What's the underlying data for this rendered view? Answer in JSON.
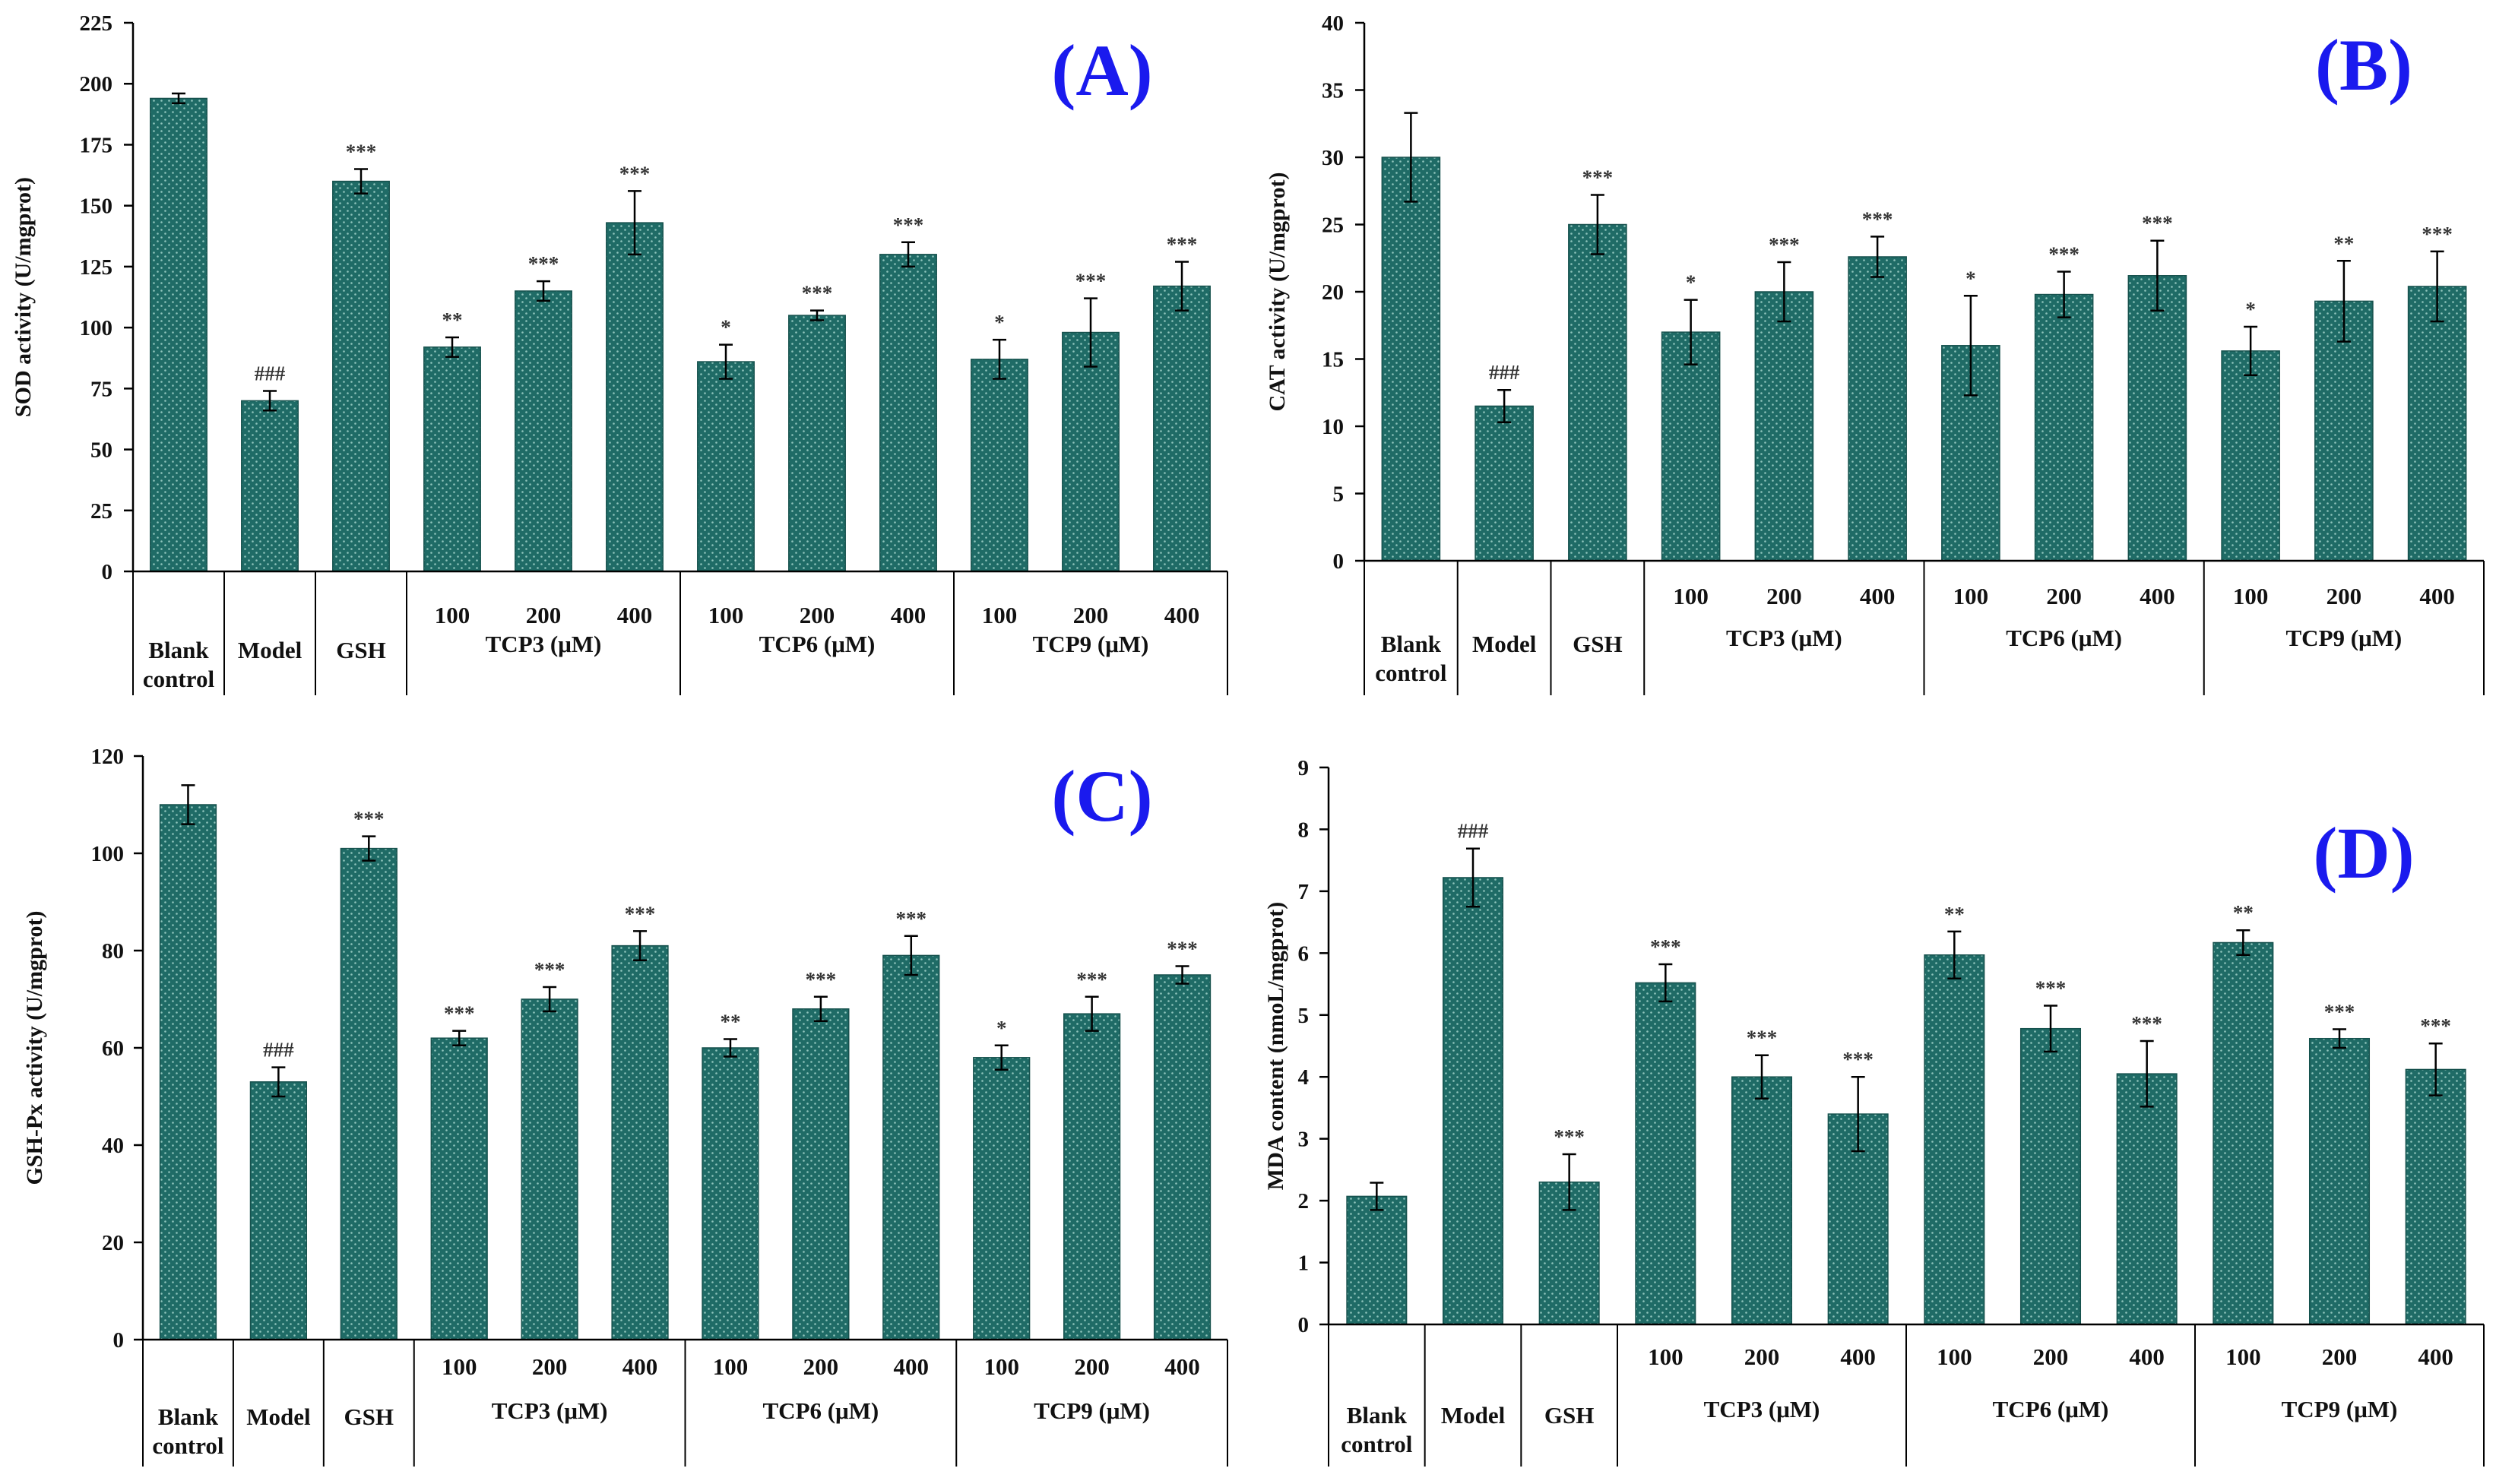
{
  "colors": {
    "bar": "#1f6b66",
    "dot": "#8fc4bc",
    "axis": "#000000",
    "letter": "#1a1aee"
  },
  "chart_data": [
    {
      "type": "bar",
      "title": "(A)",
      "ylabel": "SOD activity (U/mgprot)",
      "ylim": [
        0,
        225
      ],
      "yticks": [
        0,
        25,
        50,
        75,
        100,
        125,
        150,
        175,
        200,
        225
      ],
      "categories": [
        "Blank control",
        "Model",
        "GSH",
        "100",
        "200",
        "400",
        "100",
        "200",
        "400",
        "100",
        "200",
        "400"
      ],
      "values": [
        194,
        70,
        160,
        92,
        115,
        143,
        86,
        105,
        130,
        87,
        98,
        117
      ],
      "errors": [
        2,
        4,
        5,
        4,
        4,
        13,
        7,
        2,
        5,
        8,
        14,
        10
      ],
      "significance": [
        "",
        "###",
        "***",
        "**",
        "***",
        "***",
        "*",
        "***",
        "***",
        "*",
        "***",
        "***"
      ],
      "single_labels": [
        "Blank",
        "control",
        "Model",
        "GSH"
      ],
      "groups": [
        "TCP3 (μM)",
        "TCP6 (μM)",
        "TCP9 (μM)"
      ]
    },
    {
      "type": "bar",
      "title": "(B)",
      "ylabel": "CAT activity (U/mgprot)",
      "ylim": [
        0,
        40
      ],
      "yticks": [
        0,
        5,
        10,
        15,
        20,
        25,
        30,
        35,
        40
      ],
      "categories": [
        "Blank control",
        "Model",
        "GSH",
        "100",
        "200",
        "400",
        "100",
        "200",
        "400",
        "100",
        "200",
        "400"
      ],
      "values": [
        30,
        11.5,
        25,
        17,
        20,
        22.6,
        16,
        19.8,
        21.2,
        15.6,
        19.3,
        20.4
      ],
      "errors": [
        3.3,
        1.2,
        2.2,
        2.4,
        2.2,
        1.5,
        3.7,
        1.7,
        2.6,
        1.8,
        3,
        2.6
      ],
      "significance": [
        "",
        "###",
        "***",
        "*",
        "***",
        "***",
        "*",
        "***",
        "***",
        "*",
        "**",
        "***"
      ],
      "single_labels": [
        "Blank",
        "control",
        "Model",
        "GSH"
      ],
      "groups": [
        "TCP3 (μM)",
        "TCP6 (μM)",
        "TCP9 (μM)"
      ]
    },
    {
      "type": "bar",
      "title": "(C)",
      "ylabel": "GSH-Px activity (U/mgprot)",
      "ylim": [
        0,
        120
      ],
      "yticks": [
        0,
        20,
        40,
        60,
        80,
        100,
        120
      ],
      "categories": [
        "Blank control",
        "Model",
        "GSH",
        "100",
        "200",
        "400",
        "100",
        "200",
        "400",
        "100",
        "200",
        "400"
      ],
      "values": [
        110,
        53,
        101,
        62,
        70,
        81,
        60,
        68,
        79,
        58,
        67,
        75
      ],
      "errors": [
        4,
        3,
        2.5,
        1.5,
        2.5,
        3,
        1.8,
        2.5,
        4,
        2.5,
        3.5,
        1.8
      ],
      "significance": [
        "",
        "###",
        "***",
        "***",
        "***",
        "***",
        "**",
        "***",
        "***",
        "*",
        "***",
        "***"
      ],
      "single_labels": [
        "Blank",
        "control",
        "Model",
        "GSH"
      ],
      "groups": [
        "TCP3 (μM)",
        "TCP6 (μM)",
        "TCP9 (μM)"
      ]
    },
    {
      "type": "bar",
      "title": "(D)",
      "ylabel": "MDA content (nmoL/mgprot)",
      "ylim": [
        0,
        9
      ],
      "yticks": [
        0,
        1,
        2,
        3,
        4,
        5,
        6,
        7,
        8,
        9
      ],
      "categories": [
        "Blank control",
        "Model",
        "GSH",
        "100",
        "200",
        "400",
        "100",
        "200",
        "400",
        "100",
        "200",
        "400"
      ],
      "values": [
        2.07,
        7.22,
        2.3,
        5.52,
        4,
        3.4,
        5.97,
        4.78,
        4.05,
        6.17,
        4.62,
        4.12
      ],
      "errors": [
        0.22,
        0.47,
        0.45,
        0.3,
        0.35,
        0.6,
        0.38,
        0.37,
        0.53,
        0.2,
        0.15,
        0.42
      ],
      "significance": [
        "",
        "###",
        "***",
        "***",
        "***",
        "***",
        "**",
        "***",
        "***",
        "**",
        "***",
        "***"
      ],
      "single_labels": [
        "Blank",
        "control",
        "Model",
        "GSH"
      ],
      "groups": [
        "TCP3 (μM)",
        "TCP6 (μM)",
        "TCP9 (μM)"
      ]
    }
  ]
}
